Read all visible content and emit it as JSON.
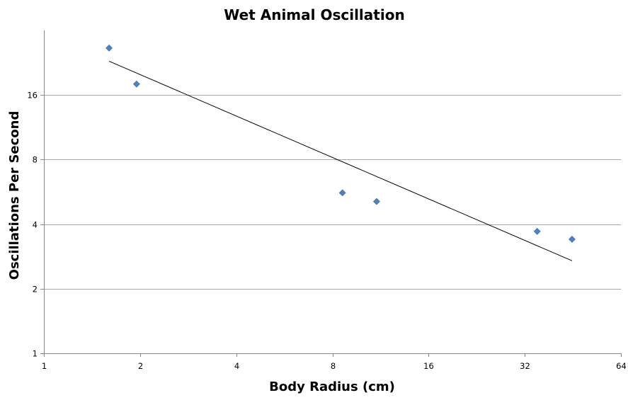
{
  "chart_data": {
    "type": "scatter",
    "title": "Wet Animal Oscillation",
    "xlabel": "Body Radius (cm)",
    "ylabel": "Oscillations Per Second",
    "x_scale": "log2",
    "y_scale": "log2",
    "xlim": [
      1,
      64
    ],
    "ylim": [
      1,
      32
    ],
    "x_ticks": [
      "1",
      "2",
      "4",
      "8",
      "16",
      "32",
      "64"
    ],
    "y_ticks": [
      "1",
      "2",
      "4",
      "8",
      "16"
    ],
    "grid": "horizontal",
    "legend": "none",
    "series": [
      {
        "x": [
          1.6,
          1.95,
          8.6,
          11,
          35,
          45
        ],
        "y": [
          26.5,
          18,
          5.6,
          5.1,
          3.7,
          3.4
        ],
        "color": "#4f81bd",
        "marker": "diamond"
      }
    ],
    "trendline": {
      "type": "power",
      "x_start": 1.6,
      "x_end": 45,
      "y_start": 23,
      "y_end": 2.7,
      "color": "#000000"
    }
  }
}
